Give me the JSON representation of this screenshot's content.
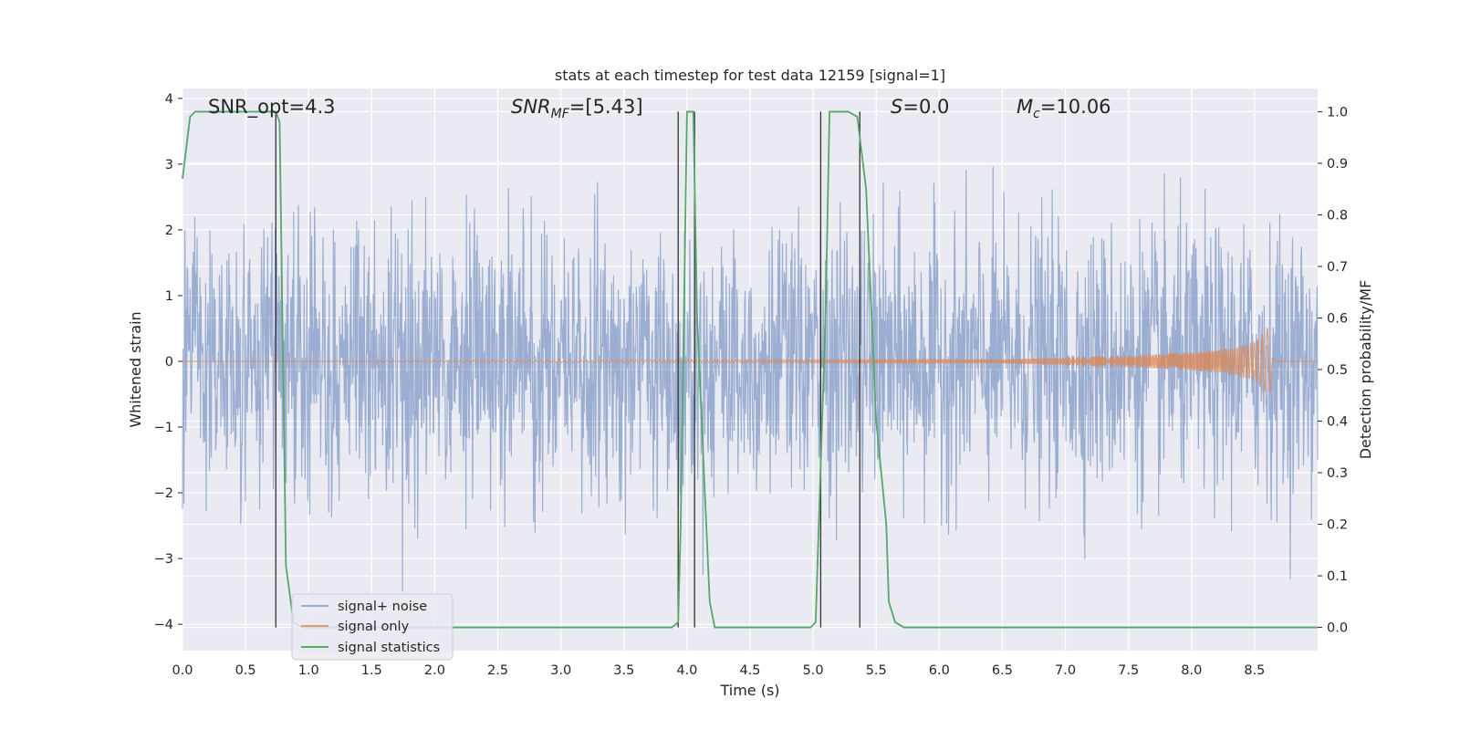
{
  "chart_data": {
    "type": "line",
    "title": "stats at each timestep for test data 12159 [signal=1]",
    "xlabel": "Time (s)",
    "ylabel_left": "Whitened strain",
    "ylabel_right": "Detection probability/MF",
    "xlim": [
      0,
      9.0
    ],
    "ylim_left": [
      -4.4,
      4.15
    ],
    "ylim_right": [
      -0.045,
      1.045
    ],
    "x_ticks": [
      "0.0",
      "0.5",
      "1.0",
      "1.5",
      "2.0",
      "2.5",
      "3.0",
      "3.5",
      "4.0",
      "4.5",
      "5.0",
      "5.5",
      "6.0",
      "6.5",
      "7.0",
      "7.5",
      "8.0",
      "8.5"
    ],
    "y_ticks_left": [
      "4",
      "3",
      "2",
      "1",
      "0",
      "−1",
      "−2",
      "−3",
      "−4"
    ],
    "y_ticks_right": [
      "1.0",
      "0.9",
      "0.8",
      "0.7",
      "0.6",
      "0.5",
      "0.4",
      "0.3",
      "0.2",
      "0.1",
      "0.0"
    ],
    "grid": true,
    "legend_position": "lower-left",
    "annotations": {
      "snr_opt": "SNR_opt=4.3",
      "snr_mf_main": "SNR",
      "snr_mf_sub": "MF",
      "snr_mf_value": "=[5.43]",
      "s_main": "S",
      "s_value": "=0.0",
      "mc_main": "M",
      "mc_sub": "c",
      "mc_value": "=10.06"
    },
    "series": [
      {
        "name": "signal+ noise",
        "color": "#4c72b0",
        "axis": "left",
        "description_values": {
          "approx_envelope": [
            -3.0,
            3.0
          ],
          "noise_std": 1.0,
          "duration_s": 9.0
        }
      },
      {
        "name": "signal only",
        "color": "#dd8452",
        "axis": "left",
        "x": [
          0,
          6.5,
          7.0,
          7.5,
          8.0,
          8.3,
          8.5,
          8.62,
          8.65,
          8.7,
          9.0
        ],
        "envelope": [
          0.0,
          0.03,
          0.06,
          0.09,
          0.14,
          0.2,
          0.3,
          0.55,
          0.0,
          0.0,
          0.0
        ]
      },
      {
        "name": "signal statistics",
        "color": "#55a868",
        "axis": "right",
        "x": [
          0.0,
          0.06,
          0.1,
          0.74,
          0.77,
          0.82,
          0.88,
          0.95,
          3.88,
          3.93,
          3.95,
          4.0,
          4.05,
          4.08,
          4.18,
          4.22,
          4.98,
          5.02,
          5.1,
          5.13,
          5.2,
          5.28,
          5.35,
          5.42,
          5.5,
          5.58,
          5.6,
          5.65,
          5.72,
          9.0
        ],
        "y": [
          0.87,
          0.99,
          1.0,
          1.0,
          0.98,
          0.12,
          0.01,
          0.0,
          0.0,
          0.01,
          0.2,
          1.0,
          1.0,
          0.6,
          0.05,
          0.0,
          0.0,
          0.01,
          0.62,
          1.0,
          1.0,
          1.0,
          0.99,
          0.85,
          0.4,
          0.2,
          0.05,
          0.01,
          0.0,
          0.0
        ]
      }
    ],
    "vertical_markers_x": [
      0.74,
      3.93,
      4.06,
      5.06,
      5.37
    ]
  }
}
